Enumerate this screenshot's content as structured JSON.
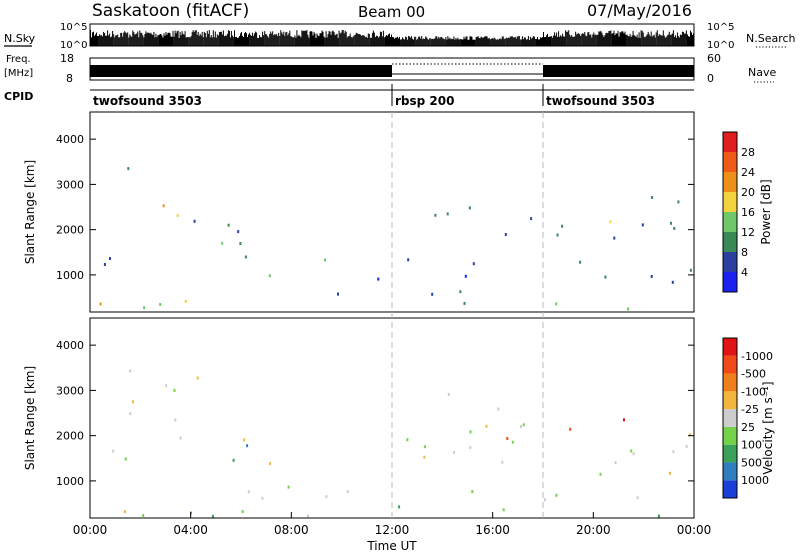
{
  "header": {
    "title": "Saskatoon (fitACF)",
    "beam": "Beam 00",
    "date": "07/May/2016"
  },
  "panels": {
    "nsky": {
      "label": "N.Sky",
      "scale_top": "10^5",
      "scale_bottom": "10^0",
      "right_label": "N.Search",
      "right_top": "10^5",
      "right_bottom": "10^0"
    },
    "freq": {
      "label_line1": "Freq.",
      "label_line2": "[MHz]",
      "left_top": "18",
      "left_bottom": "8",
      "right_top": "60",
      "right_bottom": "0",
      "right_label": "Nave"
    },
    "cpid": {
      "label": "CPID",
      "segments": [
        {
          "name": "twofsound 3503",
          "start_hour": 0,
          "end_hour": 12
        },
        {
          "name": "rbsp 200",
          "start_hour": 12,
          "end_hour": 18
        },
        {
          "name": "twofsound 3503",
          "start_hour": 18,
          "end_hour": 24
        }
      ]
    }
  },
  "chart_data": [
    {
      "type": "heatmap",
      "name": "power",
      "ylabel": "Slant Range [km]",
      "ylim": [
        180,
        4600
      ],
      "y_ticks": [
        "1000",
        "2000",
        "3000",
        "4000"
      ],
      "x_range_hours": [
        0,
        24
      ],
      "colorbar": {
        "label": "Power [dB]",
        "tick_labels": [
          "4",
          "8",
          "12",
          "16",
          "20",
          "24",
          "28"
        ],
        "colors": [
          "#1a22f0",
          "#2a3fa0",
          "#3a8a57",
          "#6ec86a",
          "#f2d33c",
          "#ee8f1c",
          "#f05a18",
          "#e01e1e"
        ]
      },
      "blobs": [
        {
          "t0": 0.0,
          "t1": 1.2,
          "r0": 200,
          "r1": 700,
          "level": 6
        },
        {
          "t0": 0.0,
          "t1": 1.5,
          "r0": 700,
          "r1": 1900,
          "level": 1
        },
        {
          "t0": 0.3,
          "t1": 2.2,
          "r0": 2800,
          "r1": 3400,
          "level": 1
        },
        {
          "t0": 1.5,
          "t1": 4.5,
          "r0": 2100,
          "r1": 2600,
          "level": 4
        },
        {
          "t0": 2.2,
          "t1": 4.0,
          "r0": 2300,
          "r1": 2500,
          "level": 5
        },
        {
          "t0": 4.0,
          "t1": 6.2,
          "r0": 1800,
          "r1": 3100,
          "level": 2
        },
        {
          "t0": 5.0,
          "t1": 6.5,
          "r0": 700,
          "r1": 2000,
          "level": 3
        },
        {
          "t0": 6.0,
          "t1": 10.0,
          "r0": 500,
          "r1": 1400,
          "level": 2
        },
        {
          "t0": 10.0,
          "t1": 12.0,
          "r0": 500,
          "r1": 1000,
          "level": 1
        },
        {
          "t0": 0.0,
          "t1": 24.0,
          "r0": 200,
          "r1": 420,
          "level": 3
        },
        {
          "t0": 12.5,
          "t1": 14.2,
          "r0": 1800,
          "r1": 3000,
          "level": 2
        },
        {
          "t0": 13.0,
          "t1": 14.0,
          "r0": 2200,
          "r1": 2600,
          "level": 4
        },
        {
          "t0": 14.5,
          "t1": 17.5,
          "r0": 1800,
          "r1": 2600,
          "level": 2
        },
        {
          "t0": 12.5,
          "t1": 17.5,
          "r0": 500,
          "r1": 1400,
          "level": 1
        },
        {
          "t0": 18.0,
          "t1": 24.0,
          "r0": 1800,
          "r1": 3000,
          "level": 2
        },
        {
          "t0": 19.0,
          "t1": 22.0,
          "r0": 2000,
          "r1": 2400,
          "level": 4
        },
        {
          "t0": 18.0,
          "t1": 24.0,
          "r0": 500,
          "r1": 1300,
          "level": 1
        }
      ]
    },
    {
      "type": "heatmap",
      "name": "velocity",
      "ylabel": "Slant Range [km]",
      "xlabel": "Time UT",
      "ylim": [
        180,
        4600
      ],
      "y_ticks": [
        "1000",
        "2000",
        "3000",
        "4000"
      ],
      "x_range_hours": [
        0,
        24
      ],
      "x_ticks": [
        "00:00",
        "04:00",
        "08:00",
        "12:00",
        "16:00",
        "20:00",
        "00:00"
      ],
      "colorbar": {
        "label": "Velocity [m s⁻¹]",
        "tick_labels": [
          "1000",
          "500",
          "100",
          "25",
          "-25",
          "-100",
          "-500",
          "-1000"
        ],
        "colors": [
          "#1a3fd8",
          "#2f7fc0",
          "#3aa05a",
          "#73d24a",
          "#cdcdcd",
          "#f2b63c",
          "#ee7f1c",
          "#ef4a18",
          "#e01414"
        ]
      },
      "blobs": [
        {
          "t0": 0.0,
          "t1": 1.5,
          "r0": 200,
          "r1": 800,
          "level": 5
        },
        {
          "t0": 0.0,
          "t1": 2.0,
          "r0": 800,
          "r1": 1900,
          "level": 4
        },
        {
          "t0": 1.5,
          "t1": 6.5,
          "r0": 1800,
          "r1": 3500,
          "level": 4
        },
        {
          "t0": 5.0,
          "t1": 6.5,
          "r0": 700,
          "r1": 2000,
          "level": 2
        },
        {
          "t0": 6.0,
          "t1": 12.0,
          "r0": 500,
          "r1": 1400,
          "level": 4
        },
        {
          "t0": 6.0,
          "t1": 10.0,
          "r0": 200,
          "r1": 700,
          "level": 3
        },
        {
          "t0": 0.0,
          "t1": 24.0,
          "r0": 200,
          "r1": 420,
          "level": 3
        },
        {
          "t0": 12.5,
          "t1": 17.5,
          "r0": 500,
          "r1": 3000,
          "level": 4
        },
        {
          "t0": 15.0,
          "t1": 17.0,
          "r0": 1700,
          "r1": 2100,
          "level": 6
        },
        {
          "t0": 18.0,
          "t1": 24.0,
          "r0": 500,
          "r1": 2200,
          "level": 4
        },
        {
          "t0": 19.0,
          "t1": 22.0,
          "r0": 2100,
          "r1": 2800,
          "level": 7
        }
      ]
    }
  ]
}
